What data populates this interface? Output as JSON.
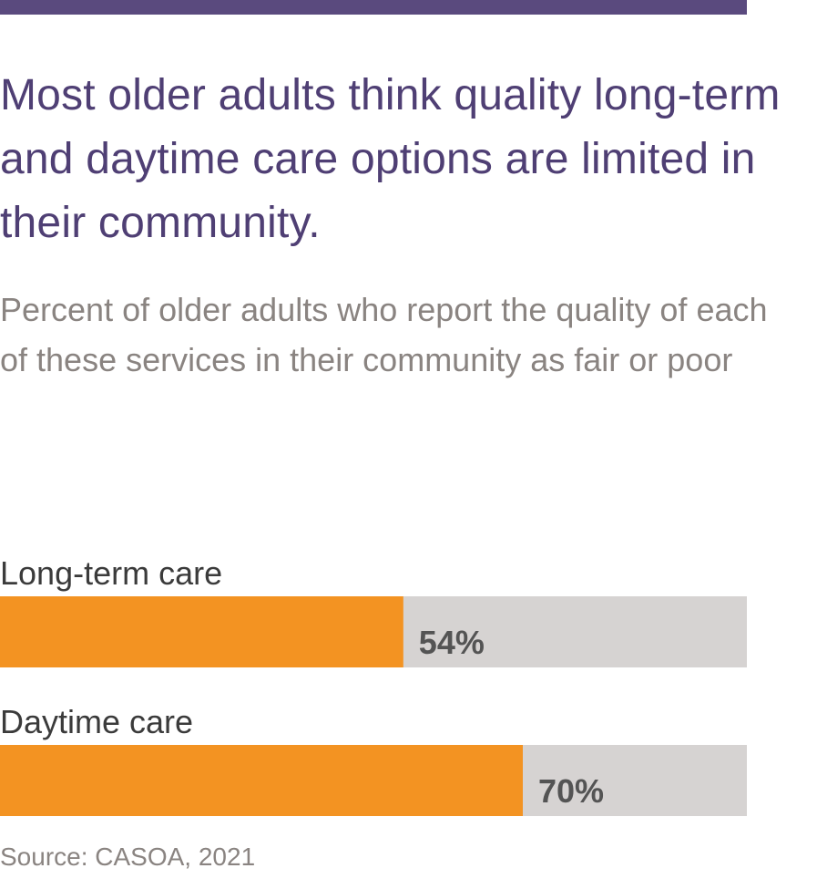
{
  "colors": {
    "accent": "#5a4a7e",
    "title": "#4f3f74",
    "bar_fill": "#f39322",
    "bar_track": "#d6d3d2",
    "muted_text": "#8a8481"
  },
  "chart_data": {
    "type": "bar",
    "orientation": "horizontal",
    "title": "Most older adults think quality long-term and daytime care options are limited in their community.",
    "subtitle": "Percent of older adults who report the quality of each of these services in their community as fair or poor",
    "categories": [
      "Long-term care",
      "Daytime care"
    ],
    "values": [
      54,
      70
    ],
    "value_labels": [
      "54%",
      "70%"
    ],
    "xlim": [
      0,
      100
    ],
    "grid": false,
    "legend": "none",
    "source": "Source: CASOA, 2021"
  }
}
